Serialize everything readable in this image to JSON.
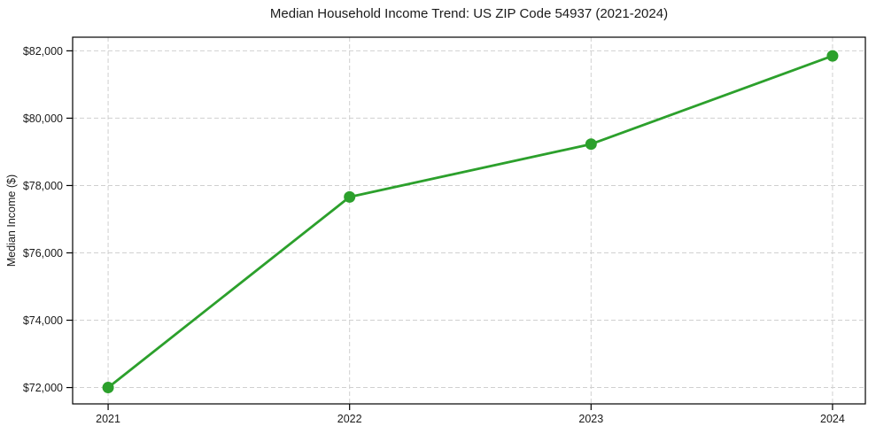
{
  "chart_data": {
    "type": "line",
    "title": "Median Household Income Trend: US ZIP Code 54937 (2021-2024)",
    "xlabel": "",
    "ylabel": "Median Income ($)",
    "x": [
      2021,
      2022,
      2023,
      2024
    ],
    "series": [
      {
        "name": "Median income",
        "values": [
          72000,
          77660,
          79230,
          81850
        ]
      }
    ],
    "xticks": [
      2021,
      2022,
      2023,
      2024
    ],
    "xtick_labels": [
      "2021",
      "2022",
      "2023",
      "2024"
    ],
    "yticks": [
      72000,
      74000,
      76000,
      78000,
      80000,
      82000
    ],
    "ytick_labels": [
      "$72,000",
      "$74,000",
      "$76,000",
      "$78,000",
      "$80,000",
      "$82,000"
    ],
    "xlim": [
      2020.853,
      2024.136
    ],
    "ylim": [
      71515,
      82405
    ],
    "grid": true,
    "grid_style": "dashed",
    "legend_position": "none",
    "styles": {
      "line_color": "#2ca02c",
      "marker_color": "#2ca02c",
      "grid_color": "#d0d0d0",
      "spine_color": "#000000",
      "text_color": "#1a1a1a",
      "background": "#ffffff"
    }
  }
}
